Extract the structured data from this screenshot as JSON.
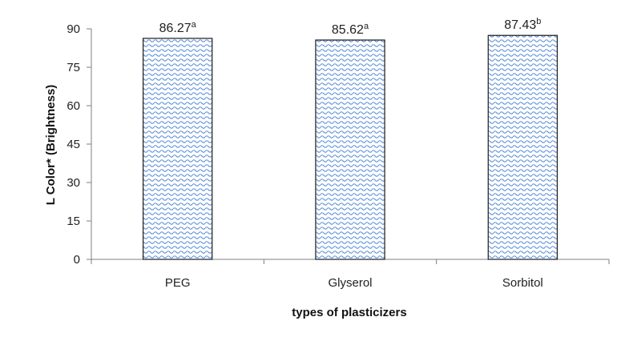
{
  "chart_data": {
    "type": "bar",
    "categories": [
      "PEG",
      "Glyserol",
      "Sorbitol"
    ],
    "values": [
      86.27,
      85.62,
      87.43
    ],
    "data_labels": [
      "86.27",
      "85.62",
      "87.43"
    ],
    "superscripts": [
      "a",
      "a",
      "b"
    ],
    "xlabel": "types of plasticizers",
    "ylabel": "L Color* (Brightness)",
    "ylim": [
      0,
      90
    ],
    "yticks": [
      0,
      15,
      30,
      45,
      60,
      75,
      90
    ],
    "grid": false,
    "legend": "none",
    "bar_fill": "#5b8fd6",
    "bar_pattern": "wave"
  }
}
